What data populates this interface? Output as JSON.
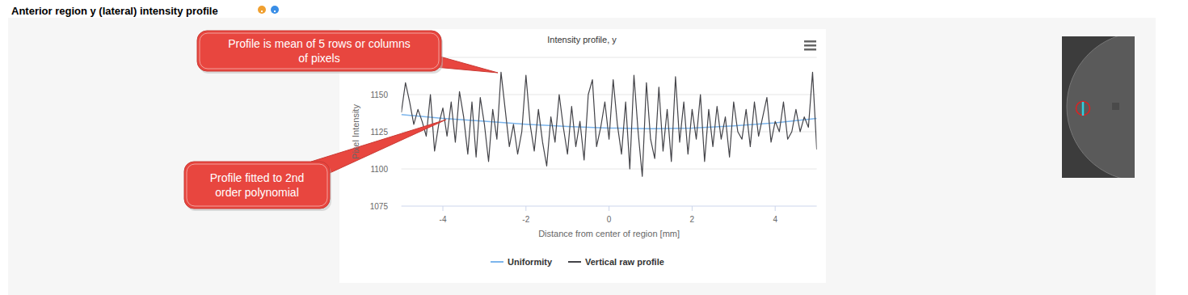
{
  "page": {
    "heading": "Anterior region y (lateral) intensity profile"
  },
  "annotations": [
    {
      "text": "Profile is mean of 5 rows or columns of pixels"
    },
    {
      "text": "Profile fitted to 2nd order polynomial"
    }
  ],
  "chart_data": {
    "type": "line",
    "title": "Intensity profile, y",
    "x_label": "Distance from center of region [mm]",
    "y_label": "Pixel Intensity",
    "xlim": [
      -5,
      5
    ],
    "xticks": [
      -4,
      -2,
      0,
      2,
      4
    ],
    "ylim": [
      1075,
      1175
    ],
    "yticks": [
      1075,
      1100,
      1125,
      1150
    ],
    "grid": true,
    "legend": "bottom",
    "series": [
      {
        "name": "Uniformity",
        "color": "#7cb5ec",
        "x": [
          -5,
          -4,
          -3,
          -2,
          -1,
          0,
          1,
          2,
          3,
          4,
          5
        ],
        "values": [
          1136.5,
          1134,
          1132,
          1130,
          1128.5,
          1127.5,
          1127,
          1127.5,
          1129,
          1131,
          1134
        ]
      },
      {
        "name": "Vertical raw profile",
        "color": "#434348",
        "x": [
          -5.0,
          -4.9,
          -4.8,
          -4.7,
          -4.6,
          -4.5,
          -4.4,
          -4.3,
          -4.2,
          -4.1,
          -4.0,
          -3.9,
          -3.8,
          -3.7,
          -3.6,
          -3.5,
          -3.4,
          -3.3,
          -3.2,
          -3.1,
          -3.0,
          -2.9,
          -2.8,
          -2.7,
          -2.6,
          -2.5,
          -2.4,
          -2.3,
          -2.2,
          -2.1,
          -2.0,
          -1.9,
          -1.8,
          -1.7,
          -1.6,
          -1.5,
          -1.4,
          -1.3,
          -1.2,
          -1.1,
          -1.0,
          -0.9,
          -0.8,
          -0.7,
          -0.6,
          -0.5,
          -0.4,
          -0.3,
          -0.2,
          -0.1,
          0.0,
          0.1,
          0.2,
          0.3,
          0.4,
          0.5,
          0.6,
          0.7,
          0.8,
          0.9,
          1.0,
          1.1,
          1.2,
          1.3,
          1.4,
          1.5,
          1.6,
          1.7,
          1.8,
          1.9,
          2.0,
          2.1,
          2.2,
          2.3,
          2.4,
          2.5,
          2.6,
          2.7,
          2.8,
          2.9,
          3.0,
          3.1,
          3.2,
          3.3,
          3.4,
          3.5,
          3.6,
          3.7,
          3.8,
          3.9,
          4.0,
          4.1,
          4.2,
          4.3,
          4.4,
          4.5,
          4.6,
          4.7,
          4.8,
          4.9,
          5.0
        ],
        "values": [
          1138,
          1158,
          1145,
          1130,
          1140,
          1132,
          1122,
          1150,
          1112,
          1130,
          1141,
          1122,
          1145,
          1118,
          1152,
          1135,
          1110,
          1145,
          1108,
          1148,
          1130,
          1105,
          1140,
          1120,
          1165,
          1140,
          1115,
          1130,
          1110,
          1125,
          1163,
          1130,
          1112,
          1140,
          1118,
          1102,
          1135,
          1118,
          1150,
          1128,
          1110,
          1142,
          1115,
          1132,
          1106,
          1150,
          1160,
          1115,
          1128,
          1145,
          1120,
          1160,
          1130,
          1110,
          1145,
          1100,
          1163,
          1125,
          1095,
          1158,
          1120,
          1107,
          1155,
          1112,
          1140,
          1105,
          1162,
          1118,
          1145,
          1110,
          1140,
          1120,
          1150,
          1105,
          1140,
          1115,
          1142,
          1120,
          1135,
          1108,
          1145,
          1125,
          1120,
          1140,
          1115,
          1145,
          1122,
          1135,
          1148,
          1118,
          1132,
          1125,
          1145,
          1120,
          1125,
          1140,
          1125,
          1135,
          1128,
          1165,
          1113
        ]
      }
    ]
  }
}
